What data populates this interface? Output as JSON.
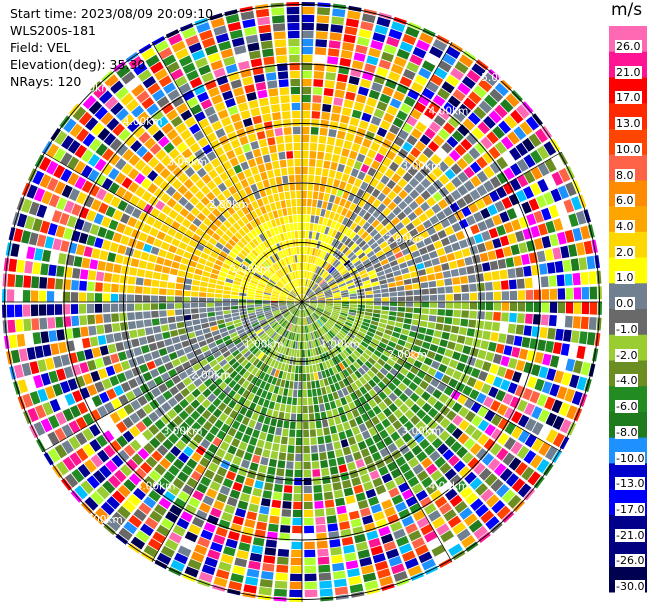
{
  "header": {
    "start_time": "Start time: 2023/08/09 20:09:10",
    "instrument": "WLS200s-181",
    "field": "Field: VEL",
    "elevation": "Elevation(deg): 35.30",
    "nrays": "NRays: 120"
  },
  "colorbar": {
    "unit": "m/s",
    "ticks": [
      "26.0",
      "21.0",
      "17.0",
      "13.0",
      "10.0",
      "8.0",
      "6.0",
      "4.0",
      "2.0",
      "1.0",
      "0.0",
      "-1.0",
      "-2.0",
      "-4.0",
      "-6.0",
      "-8.0",
      "-10.0",
      "-13.0",
      "-17.0",
      "-21.0",
      "-26.0",
      "-30.0"
    ],
    "colors": [
      "#ff69b4",
      "#ff1493",
      "#ff0000",
      "#ff2a00",
      "#ff4500",
      "#ff6347",
      "#ff8c00",
      "#ffa500",
      "#ffd700",
      "#ffff00",
      "#708090",
      "#696969",
      "#9acd32",
      "#6b8e23",
      "#228b22",
      "#1e7b1e",
      "#1e90ff",
      "#0000cd",
      "#0000ff",
      "#00008b",
      "#000080",
      "#000050"
    ]
  },
  "chart_data": {
    "type": "heatmap",
    "projection": "polar PPI (plan position indicator)",
    "field": "VEL",
    "nrays": 120,
    "range_rings": [
      {
        "label": "1.00km"
      },
      {
        "label": "2.00km"
      },
      {
        "label": "3.00km"
      },
      {
        "label": "4.00km"
      },
      {
        "label": "5.00km"
      }
    ],
    "ring_labels": [
      "5.00km",
      "4.00km",
      "3.00km",
      "2.00km",
      "1.00km",
      "1.00km",
      "1.00km",
      "2.00km",
      "2.00km",
      "2.00km",
      "3.00km",
      "3.00km",
      "3.00km",
      "4.00km",
      "4.00km",
      "4.00km",
      "5.00km",
      "5.00km"
    ],
    "pattern": {
      "north_half_inner": "positive 1-8 m/s (yellow-orange), grey near-zero patches to east",
      "south_half_inner": "negative -1 to -8 m/s (green), grey near-zero to west",
      "outer_rings": "noise, random colors"
    }
  }
}
